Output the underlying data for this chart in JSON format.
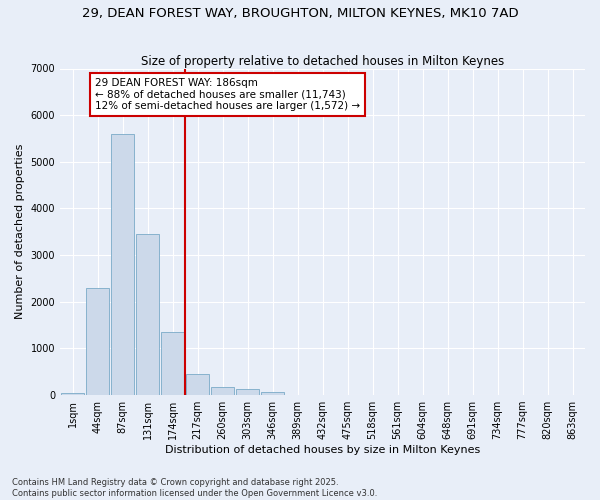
{
  "title1": "29, DEAN FOREST WAY, BROUGHTON, MILTON KEYNES, MK10 7AD",
  "title2": "Size of property relative to detached houses in Milton Keynes",
  "xlabel": "Distribution of detached houses by size in Milton Keynes",
  "ylabel": "Number of detached properties",
  "footnote": "Contains HM Land Registry data © Crown copyright and database right 2025.\nContains public sector information licensed under the Open Government Licence v3.0.",
  "categories": [
    "1sqm",
    "44sqm",
    "87sqm",
    "131sqm",
    "174sqm",
    "217sqm",
    "260sqm",
    "303sqm",
    "346sqm",
    "389sqm",
    "432sqm",
    "475sqm",
    "518sqm",
    "561sqm",
    "604sqm",
    "648sqm",
    "691sqm",
    "734sqm",
    "777sqm",
    "820sqm",
    "863sqm"
  ],
  "values": [
    50,
    2300,
    5600,
    3450,
    1350,
    460,
    170,
    130,
    60,
    0,
    0,
    0,
    0,
    0,
    0,
    0,
    0,
    0,
    0,
    0,
    0
  ],
  "bar_color": "#ccd9ea",
  "bar_edge_color": "#7aaac8",
  "vline_color": "#cc0000",
  "vline_x": 4.5,
  "annotation_text": "29 DEAN FOREST WAY: 186sqm\n← 88% of detached houses are smaller (11,743)\n12% of semi-detached houses are larger (1,572) →",
  "annotation_box_color": "#ffffff",
  "annotation_box_edge_color": "#cc0000",
  "ylim": [
    0,
    7000
  ],
  "yticks": [
    0,
    1000,
    2000,
    3000,
    4000,
    5000,
    6000,
    7000
  ],
  "bg_color": "#e8eef8",
  "plot_bg_color": "#e8eef8",
  "grid_color": "#ffffff",
  "title_fontsize": 9.5,
  "subtitle_fontsize": 8.5,
  "tick_fontsize": 7,
  "ylabel_fontsize": 8,
  "xlabel_fontsize": 8,
  "annotation_fontsize": 7.5,
  "footnote_fontsize": 6
}
